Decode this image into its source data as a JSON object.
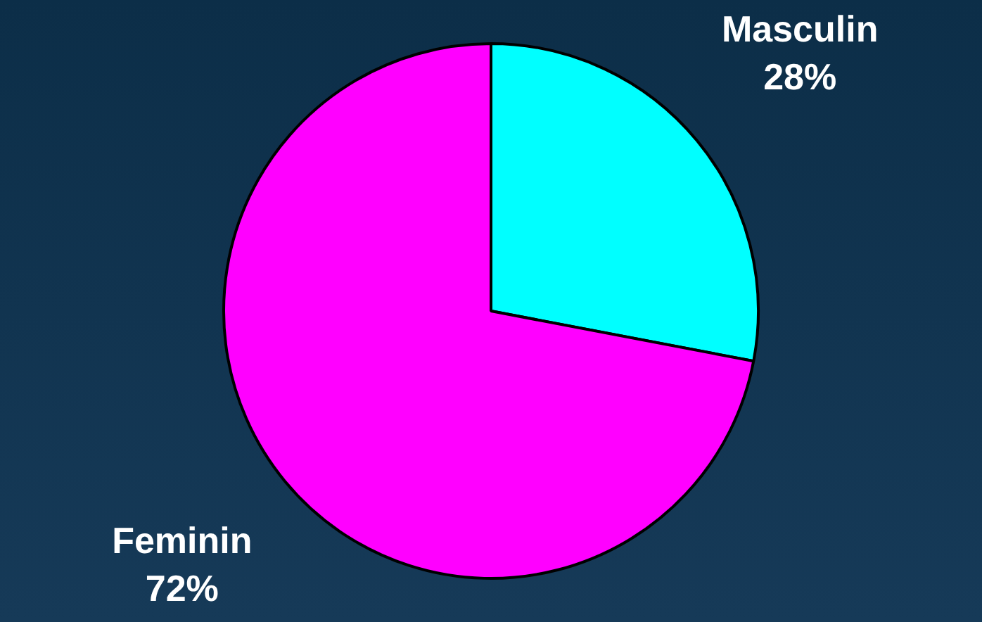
{
  "chart_data": {
    "type": "pie",
    "categories": [
      "Masculin",
      "Feminin"
    ],
    "values": [
      28,
      72
    ],
    "colors": [
      "#00ffff",
      "#ff00ff"
    ],
    "value_labels": [
      "28%",
      "72%"
    ],
    "legend": false
  }
}
